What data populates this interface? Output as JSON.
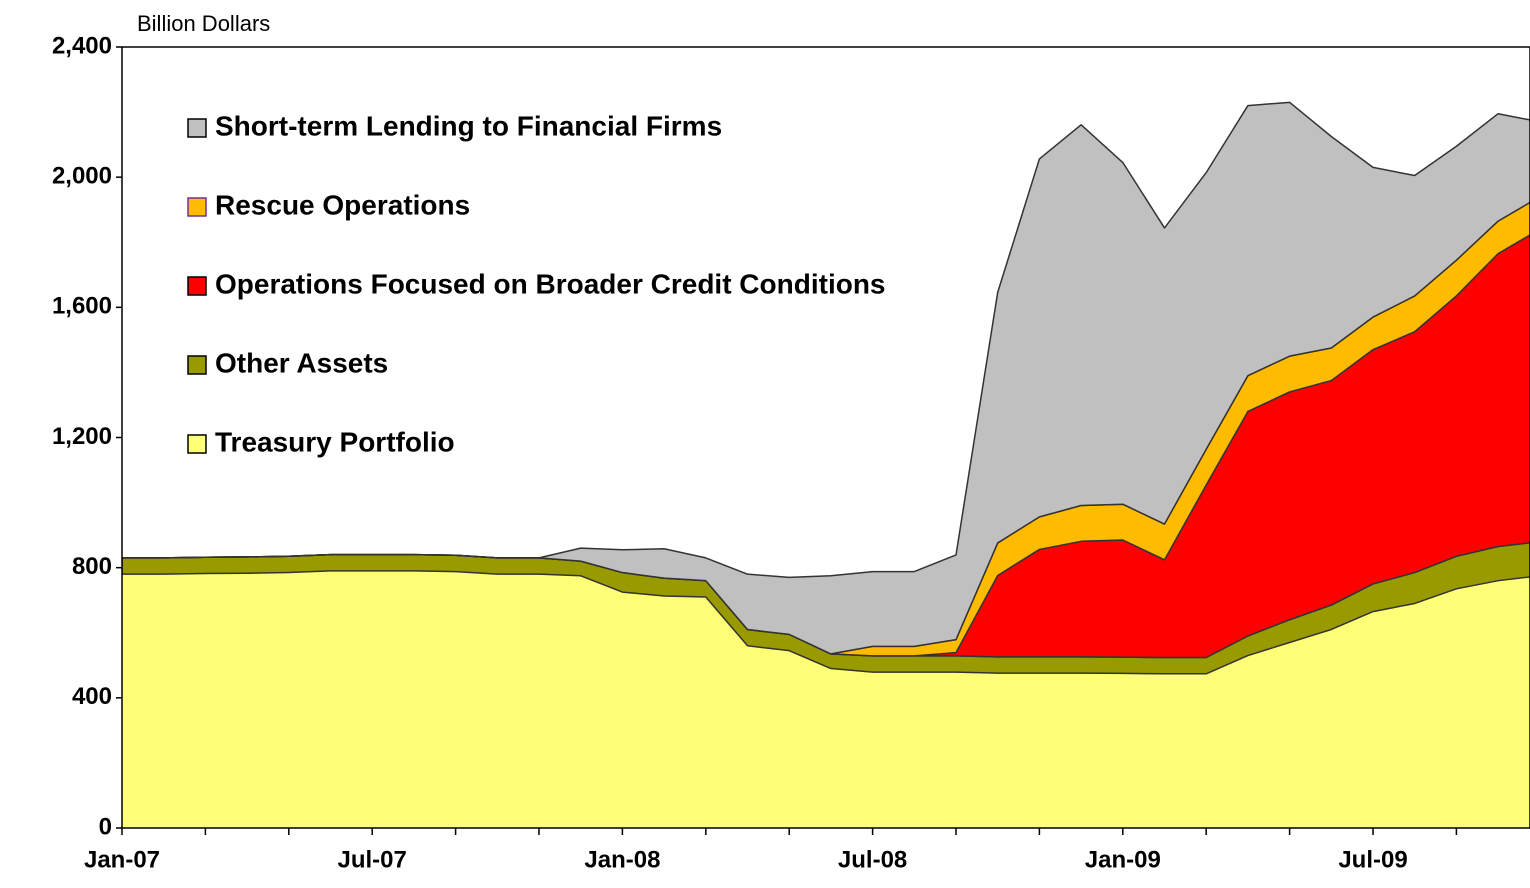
{
  "chart_data": {
    "type": "stacked-area",
    "y_label": "Billion Dollars",
    "categories": [
      "Jan-07",
      null,
      null,
      null,
      null,
      null,
      "Jul-07",
      null,
      null,
      null,
      null,
      null,
      "Jan-08",
      null,
      null,
      null,
      null,
      null,
      "Jul-08",
      null,
      null,
      null,
      null,
      null,
      "Jan-09",
      null,
      null,
      null,
      null,
      null,
      "Jul-09",
      null,
      null,
      null,
      null
    ],
    "series": [
      {
        "name": "Treasury Portfolio",
        "color": "#ffff77",
        "values": [
          780,
          780,
          782,
          783,
          785,
          790,
          790,
          790,
          788,
          780,
          780,
          775,
          725,
          713,
          710,
          560,
          545,
          490,
          479,
          479,
          479,
          476,
          476,
          476,
          475,
          474,
          474,
          530,
          570,
          610,
          665,
          690,
          735,
          760,
          775
        ]
      },
      {
        "name": "Other Assets",
        "color": "#999900",
        "values": [
          50,
          50,
          50,
          50,
          50,
          50,
          50,
          50,
          50,
          50,
          50,
          45,
          60,
          55,
          50,
          50,
          50,
          45,
          50,
          50,
          50,
          50,
          50,
          50,
          50,
          50,
          50,
          60,
          70,
          75,
          85,
          95,
          100,
          105,
          105
        ]
      },
      {
        "name": "Operations Focused on Broader Credit Conditions",
        "color": "#ff0000",
        "values": [
          0,
          0,
          0,
          0,
          0,
          0,
          0,
          0,
          0,
          0,
          0,
          0,
          0,
          0,
          0,
          0,
          0,
          0,
          0,
          0,
          10,
          250,
          330,
          355,
          360,
          300,
          530,
          690,
          700,
          690,
          720,
          740,
          800,
          900,
          960
        ]
      },
      {
        "name": "Rescue Operations",
        "color": "#ffbb00",
        "values": [
          0,
          0,
          0,
          0,
          0,
          0,
          0,
          0,
          0,
          0,
          0,
          0,
          0,
          0,
          0,
          0,
          0,
          0,
          29,
          29,
          40,
          100,
          100,
          110,
          110,
          110,
          110,
          110,
          110,
          100,
          100,
          110,
          110,
          100,
          100
        ]
      },
      {
        "name": "Short-term Lending to Financial Firms",
        "color": "#c0c0c0",
        "values": [
          0,
          0,
          0,
          0,
          0,
          0,
          0,
          0,
          0,
          0,
          0,
          40,
          70,
          90,
          70,
          170,
          175,
          240,
          230,
          230,
          260,
          770,
          1100,
          1170,
          1050,
          910,
          850,
          830,
          780,
          650,
          460,
          370,
          350,
          330,
          230
        ]
      }
    ],
    "ylim": [
      0,
      2400
    ],
    "yticks": [
      0,
      400,
      800,
      {
        "value": 1200,
        "label": "1,200"
      },
      {
        "value": 1600,
        "label": "1,600"
      },
      {
        "value": 2000,
        "label": "2,000"
      },
      {
        "value": 2400,
        "label": "2,400"
      }
    ],
    "grid": false,
    "legend": "upper-left"
  }
}
